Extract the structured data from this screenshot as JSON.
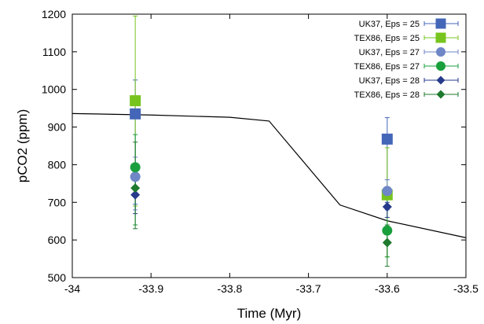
{
  "chart_data": {
    "type": "scatter",
    "xlabel": "Time (Myr)",
    "ylabel": "pCO2 (ppm)",
    "xlim": [
      -34,
      -33.5
    ],
    "ylim": [
      500,
      1200
    ],
    "xticks": [
      -34,
      -33.9,
      -33.8,
      -33.7,
      -33.6,
      -33.5
    ],
    "xtick_labels": [
      "-34",
      "-33.9",
      "-33.8",
      "-33.7",
      "-33.6",
      "-33.5"
    ],
    "yticks": [
      500,
      600,
      700,
      800,
      900,
      1000,
      1100,
      1200
    ],
    "ytick_labels": [
      "500",
      "600",
      "700",
      "800",
      "900",
      "1000",
      "1100",
      "1200"
    ],
    "legend_position": "top-right",
    "grid": false,
    "line": {
      "color": "#000000",
      "x": [
        -34.0,
        -33.9,
        -33.8,
        -33.75,
        -33.66,
        -33.6,
        -33.5
      ],
      "y": [
        936,
        932,
        926,
        916,
        693,
        651,
        606
      ]
    },
    "series": [
      {
        "name": "UK37, Eps = 25",
        "color": "#4466b8",
        "marker": "square",
        "x": [
          -33.92,
          -33.6
        ],
        "y": [
          935,
          868
        ],
        "err_low": [
          695,
          760
        ],
        "err_high": [
          1025,
          925
        ]
      },
      {
        "name": "TEX86, Eps = 25",
        "color": "#77c41e",
        "marker": "square",
        "x": [
          -33.92,
          -33.6
        ],
        "y": [
          970,
          720
        ],
        "err_low": [
          690,
          555
        ],
        "err_high": [
          1195,
          845
        ]
      },
      {
        "name": "UK37, Eps = 27",
        "color": "#6f86c7",
        "marker": "circle",
        "x": [
          -33.92,
          -33.6
        ],
        "y": [
          768,
          730
        ],
        "err_low": [
          680,
          680
        ],
        "err_high": [
          820,
          760
        ]
      },
      {
        "name": "TEX86, Eps = 27",
        "color": "#1a9f3d",
        "marker": "circle",
        "x": [
          -33.92,
          -33.6
        ],
        "y": [
          793,
          625
        ],
        "err_low": [
          640,
          555
        ],
        "err_high": [
          880,
          720
        ]
      },
      {
        "name": "UK37, Eps = 28",
        "color": "#263a8c",
        "marker": "diamond",
        "x": [
          -33.92,
          -33.6
        ],
        "y": [
          720,
          688
        ],
        "err_low": [
          670,
          660
        ],
        "err_high": [
          770,
          700
        ]
      },
      {
        "name": "TEX86, Eps = 28",
        "color": "#1e7a2e",
        "marker": "diamond",
        "x": [
          -33.92,
          -33.6
        ],
        "y": [
          738,
          593
        ],
        "err_low": [
          630,
          530
        ],
        "err_high": [
          860,
          640
        ]
      }
    ]
  }
}
